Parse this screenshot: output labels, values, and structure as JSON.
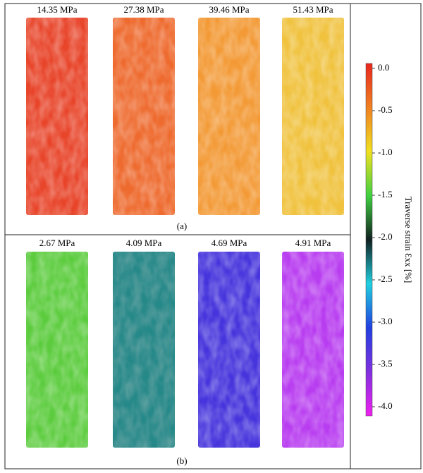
{
  "panels": [
    {
      "label": "(a)",
      "maps": [
        "14.35 MPa",
        "27.38 MPa",
        "39.46 MPa",
        "51.43 MPa"
      ]
    },
    {
      "label": "(b)",
      "maps": [
        "2.67 MPa",
        "4.09 MPa",
        "4.69 MPa",
        "4.91 MPa"
      ]
    }
  ],
  "colorbar": {
    "label": "Traverse strain Ɛxx [%]",
    "ticks": [
      "0.0",
      "-0.5",
      "-1.0",
      "-1.5",
      "-2.0",
      "-2.5",
      "-3.0",
      "-3.5",
      "-4.0"
    ]
  }
}
